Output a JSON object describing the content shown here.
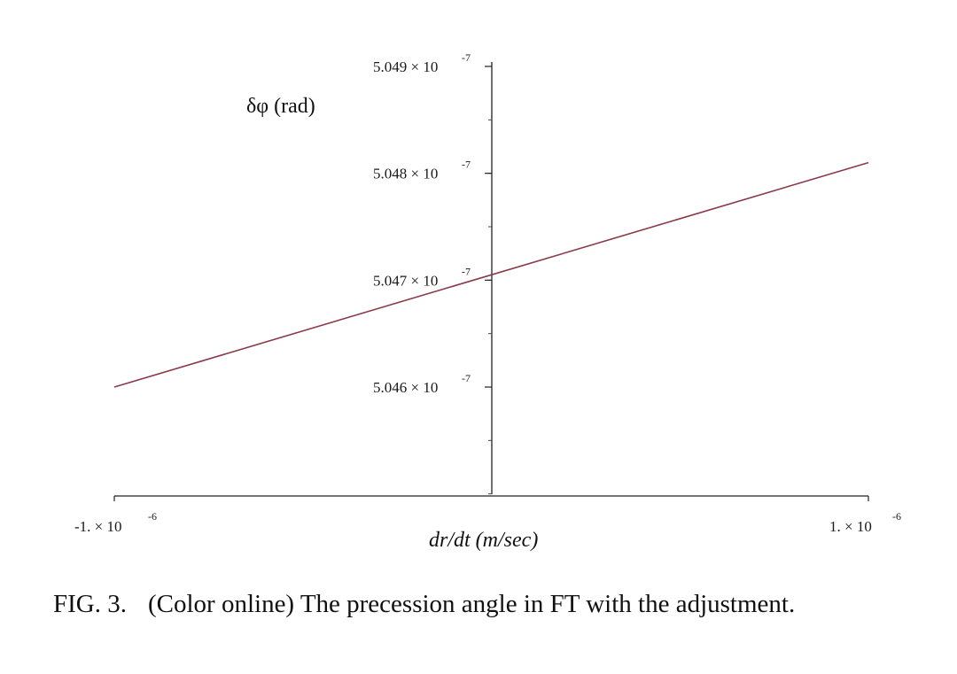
{
  "chart_data": {
    "type": "line",
    "xlabel": "dr/dt (m/sec)",
    "ylabel": "δφ (rad)",
    "xlim": [
      -1e-06,
      1e-06
    ],
    "ylim": [
      5.04545e-07,
      5.049e-07
    ],
    "x_ticks": [
      {
        "value": -1e-06,
        "mantissa": "-1.",
        "times": "×",
        "base": "10",
        "exponent": "-6"
      },
      {
        "value": 1e-06,
        "mantissa": "1.",
        "times": "×",
        "base": "10",
        "exponent": "-6"
      }
    ],
    "y_ticks": [
      {
        "value": 5.046e-07,
        "mantissa": "5.046",
        "times": "×",
        "base": "10",
        "exponent": "-7"
      },
      {
        "value": 5.047e-07,
        "mantissa": "5.047",
        "times": "×",
        "base": "10",
        "exponent": "-7"
      },
      {
        "value": 5.048e-07,
        "mantissa": "5.048",
        "times": "×",
        "base": "10",
        "exponent": "-7"
      },
      {
        "value": 5.049e-07,
        "mantissa": "5.049",
        "times": "×",
        "base": "10",
        "exponent": "-7"
      }
    ],
    "series": [
      {
        "color": "#8b3a4a",
        "x": [
          -1e-06,
          0,
          1e-06
        ],
        "y": [
          5.046e-07,
          5.04705e-07,
          5.0481e-07
        ]
      }
    ],
    "grid": false
  },
  "caption": {
    "number": "FIG. 3.",
    "text": "(Color online) The precession angle in FT with the adjustment."
  }
}
